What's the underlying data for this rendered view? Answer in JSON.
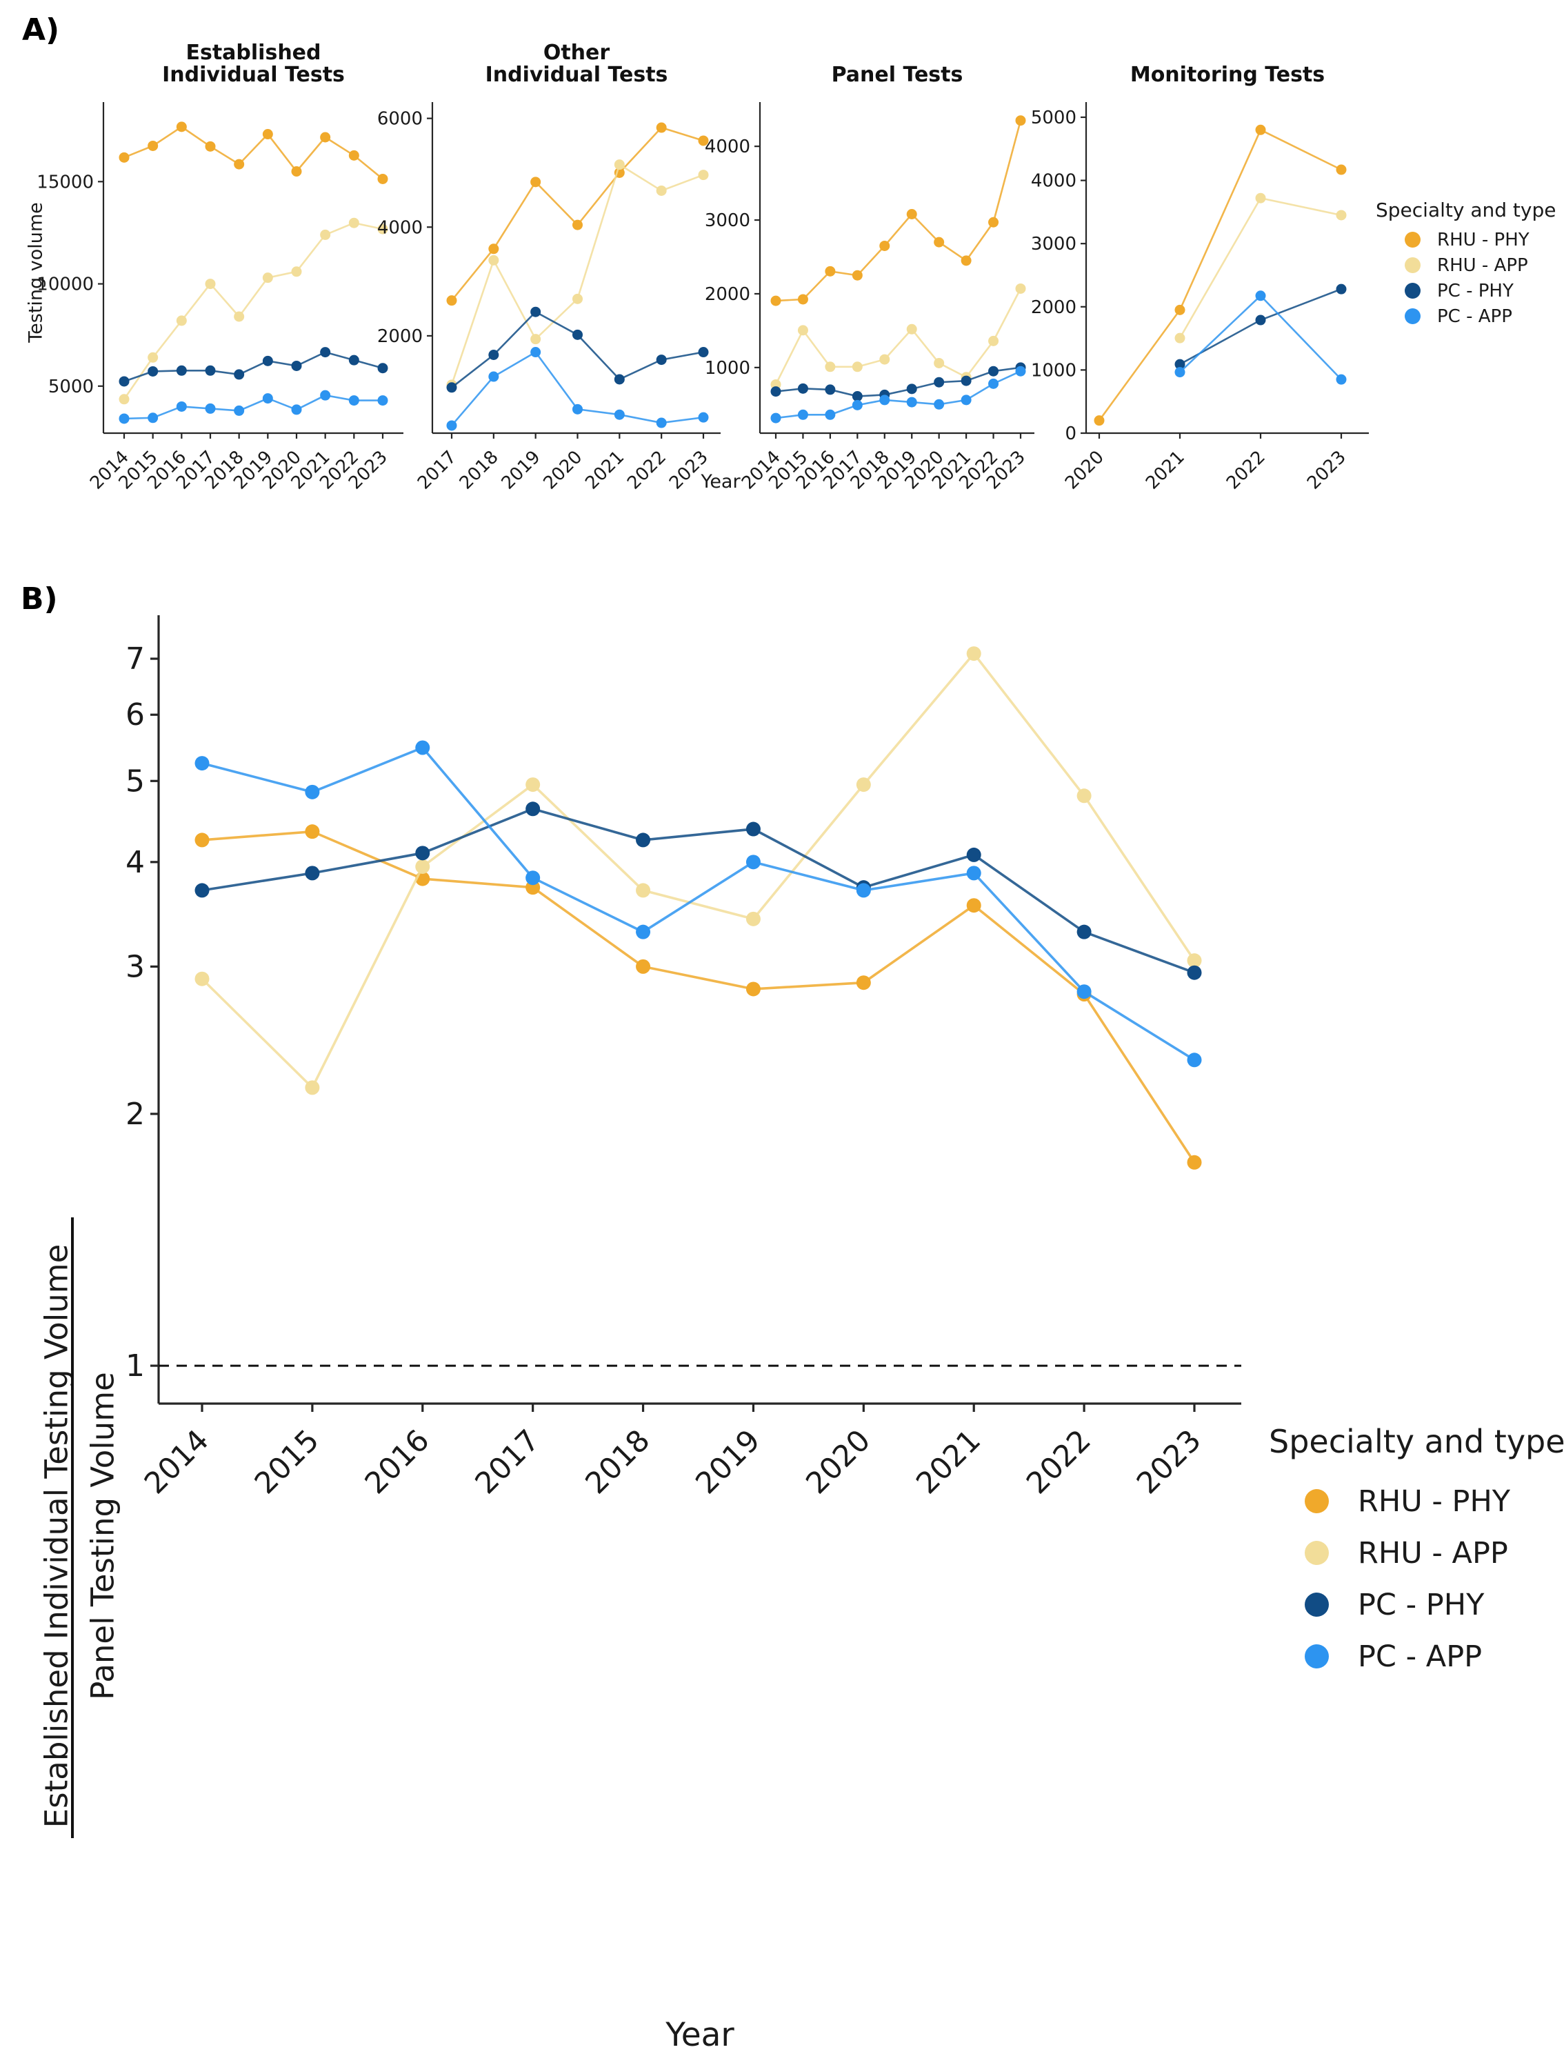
{
  "colors": {
    "RHU - PHY": "#F0A92B",
    "RHU - APP": "#F2DD99",
    "PC - PHY": "#114C85",
    "PC - APP": "#2D94F0"
  },
  "panel_a": {
    "label": "A)",
    "ylabel": "Testing volume",
    "xlabel": "Year",
    "legend": {
      "title": "Specialty and type",
      "entries": [
        {
          "label": "RHU - PHY",
          "color_key": "RHU - PHY"
        },
        {
          "label": "RHU - APP",
          "color_key": "RHU - APP"
        },
        {
          "label": "PC - PHY",
          "color_key": "PC - PHY"
        },
        {
          "label": "PC - APP",
          "color_key": "PC - APP"
        }
      ]
    }
  },
  "panel_b": {
    "label": "B)",
    "ylabel_numerator": "Established Individual Testing Volume",
    "ylabel_denominator": "Panel Testing Volume",
    "xlabel": "Year",
    "reference_line": 1,
    "legend": {
      "title": "Specialty and type",
      "entries": [
        {
          "label": "RHU - PHY",
          "color_key": "RHU - PHY"
        },
        {
          "label": "RHU - APP",
          "color_key": "RHU - APP"
        },
        {
          "label": "PC - PHY",
          "color_key": "PC - PHY"
        },
        {
          "label": "PC - APP",
          "color_key": "PC - APP"
        }
      ]
    }
  },
  "chart_data": [
    {
      "type": "line",
      "title": [
        "Established",
        "Individual Tests"
      ],
      "x": [
        "2014",
        "2015",
        "2016",
        "2017",
        "2018",
        "2019",
        "2020",
        "2021",
        "2022",
        "2023"
      ],
      "yscale": "linear",
      "ylim": [
        2700,
        18890
      ],
      "yticks": [
        5000,
        10000,
        15000
      ],
      "series": [
        {
          "name": "RHU - PHY",
          "values": [
            16180,
            16750,
            17680,
            16720,
            15850,
            17320,
            15500,
            17170,
            16280,
            15130
          ]
        },
        {
          "name": "RHU - APP",
          "values": [
            4360,
            6400,
            8200,
            10000,
            8400,
            10300,
            10600,
            12400,
            12980,
            12680
          ]
        },
        {
          "name": "PC - PHY",
          "values": [
            5230,
            5720,
            5760,
            5760,
            5570,
            6230,
            5990,
            6660,
            6270,
            5880
          ]
        },
        {
          "name": "PC - APP",
          "values": [
            3410,
            3450,
            4000,
            3900,
            3800,
            4400,
            3850,
            4550,
            4300,
            4300
          ]
        }
      ]
    },
    {
      "type": "line",
      "title": [
        "Other",
        "Individual Tests"
      ],
      "x": [
        "2017",
        "2018",
        "2019",
        "2020",
        "2021",
        "2022",
        "2023"
      ],
      "yscale": "linear",
      "ylim": [
        210,
        6300
      ],
      "yticks": [
        2000,
        4000,
        6000
      ],
      "series": [
        {
          "name": "RHU - PHY",
          "values": [
            2650,
            3600,
            4830,
            4040,
            5000,
            5830,
            5590
          ]
        },
        {
          "name": "RHU - APP",
          "values": [
            1100,
            3390,
            1940,
            2680,
            5150,
            4670,
            4960
          ]
        },
        {
          "name": "PC - PHY",
          "values": [
            1050,
            1650,
            2440,
            2020,
            1200,
            1560,
            1700
          ]
        },
        {
          "name": "PC - APP",
          "values": [
            350,
            1250,
            1700,
            650,
            550,
            400,
            500
          ]
        }
      ]
    },
    {
      "type": "line",
      "title": [
        "Panel Tests"
      ],
      "x": [
        "2014",
        "2015",
        "2016",
        "2017",
        "2018",
        "2019",
        "2020",
        "2021",
        "2022",
        "2023"
      ],
      "yscale": "linear",
      "ylim": [
        110,
        4600
      ],
      "yticks": [
        1000,
        2000,
        3000,
        4000
      ],
      "series": [
        {
          "name": "RHU - PHY",
          "values": [
            1905,
            1925,
            2305,
            2250,
            2650,
            3080,
            2700,
            2450,
            2970,
            4350
          ]
        },
        {
          "name": "RHU - APP",
          "values": [
            770,
            1505,
            1010,
            1010,
            1110,
            1520,
            1060,
            870,
            1360,
            2070
          ]
        },
        {
          "name": "PC - PHY",
          "values": [
            675,
            715,
            700,
            610,
            630,
            710,
            800,
            820,
            950,
            1000
          ]
        },
        {
          "name": "PC - APP",
          "values": [
            315,
            360,
            360,
            490,
            560,
            530,
            500,
            560,
            780,
            950
          ]
        }
      ]
    },
    {
      "type": "line",
      "title": [
        "Monitoring Tests"
      ],
      "x": [
        "2020",
        "2021",
        "2022",
        "2023"
      ],
      "yscale": "linear",
      "ylim": [
        0,
        5240
      ],
      "yticks": [
        0,
        1000,
        2000,
        3000,
        4000,
        5000
      ],
      "series": [
        {
          "name": "RHU - PHY",
          "values": [
            200,
            1950,
            4800,
            4170
          ]
        },
        {
          "name": "RHU - APP",
          "values": [
            null,
            1505,
            3720,
            3450
          ]
        },
        {
          "name": "PC - PHY",
          "values": [
            null,
            1090,
            1790,
            2280
          ]
        },
        {
          "name": "PC - APP",
          "values": [
            null,
            965,
            2175,
            850
          ]
        }
      ]
    },
    {
      "type": "line",
      "title": [],
      "x": [
        "2014",
        "2015",
        "2016",
        "2017",
        "2018",
        "2019",
        "2020",
        "2021",
        "2022",
        "2023"
      ],
      "yscale": "log",
      "ylim": [
        0.901,
        7.89
      ],
      "yticks": [
        1,
        2,
        3,
        4,
        5,
        6,
        7
      ],
      "reference_line": 1,
      "series": [
        {
          "name": "RHU - PHY",
          "values": [
            4.25,
            4.35,
            3.82,
            3.73,
            3.0,
            2.82,
            2.87,
            3.55,
            2.78,
            1.75
          ]
        },
        {
          "name": "RHU - APP",
          "values": [
            2.9,
            2.15,
            3.95,
            4.95,
            3.7,
            3.42,
            4.95,
            7.1,
            4.8,
            3.05
          ]
        },
        {
          "name": "PC - PHY",
          "values": [
            3.7,
            3.88,
            4.1,
            4.63,
            4.25,
            4.38,
            3.73,
            4.08,
            3.3,
            2.95
          ]
        },
        {
          "name": "PC - APP",
          "values": [
            5.25,
            4.85,
            5.48,
            3.83,
            3.3,
            4.0,
            3.7,
            3.88,
            2.8,
            2.32
          ]
        }
      ]
    }
  ]
}
